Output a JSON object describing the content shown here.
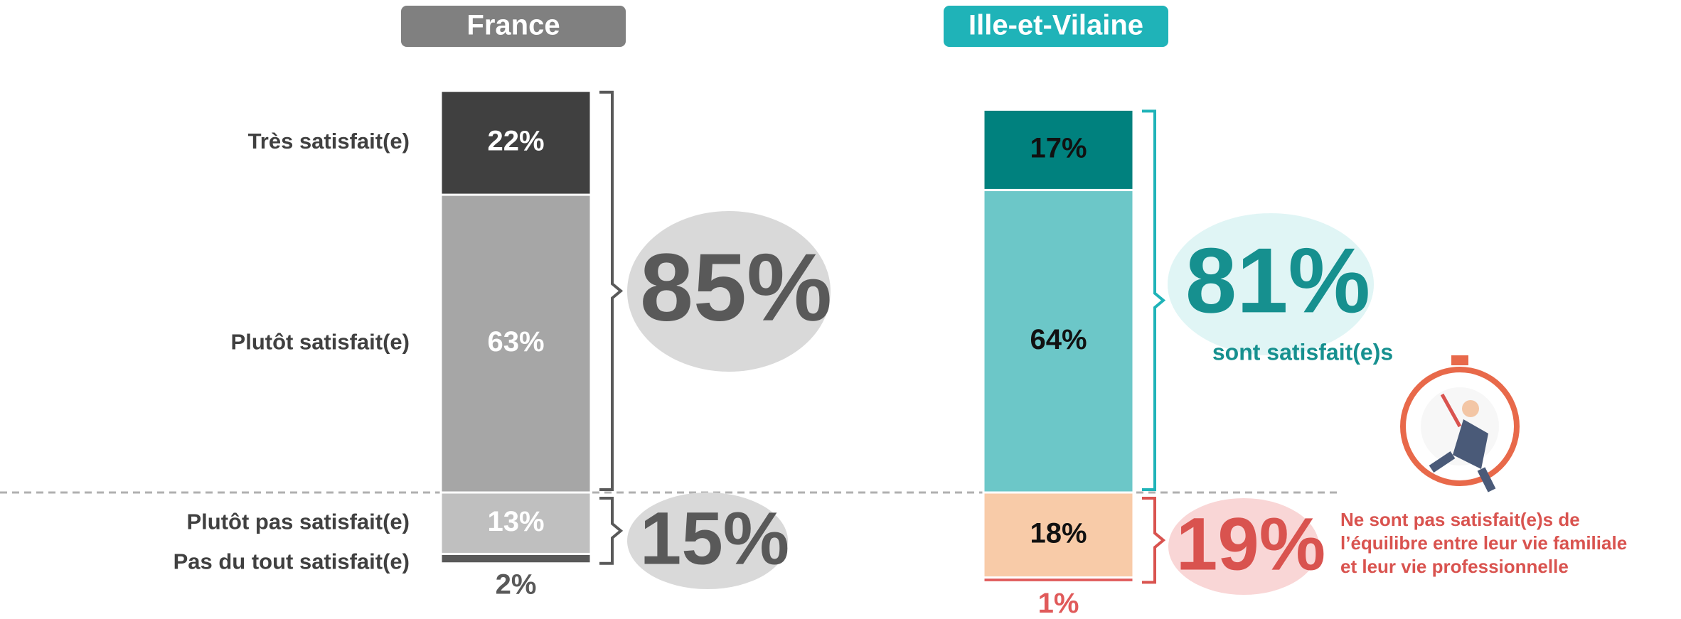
{
  "chart_data": {
    "type": "diverging_stacked_bar",
    "categories": [
      "France",
      "Ille-et-Vilaine"
    ],
    "category_colors": [
      "#808080",
      "#1fb3b8"
    ],
    "series": [
      {
        "name": "Très satisfait(e)",
        "colors": [
          "#404040",
          "#00817e"
        ],
        "values": [
          22,
          17
        ],
        "value_labels": [
          "22%",
          "17%"
        ]
      },
      {
        "name": "Plutôt satisfait(e)",
        "colors": [
          "#a6a6a6",
          "#6cc7c8"
        ],
        "values": [
          63,
          64
        ],
        "value_labels": [
          "63%",
          "64%"
        ]
      },
      {
        "name": "Plutôt pas satisfait(e)",
        "colors": [
          "#bfbfbf",
          "#f8cba8"
        ],
        "values": [
          13,
          18
        ],
        "value_labels": [
          "13%",
          "18%"
        ]
      },
      {
        "name": "Pas du tout satisfait(e)",
        "colors": [
          "#595959",
          "#e05a5a"
        ],
        "values": [
          2,
          1
        ],
        "value_labels": [
          "2%",
          "1%"
        ]
      }
    ],
    "totals": [
      {
        "values": [
          85,
          81
        ],
        "value_labels": [
          "85%",
          "81%"
        ]
      },
      {
        "values": [
          15,
          19
        ],
        "value_labels": [
          "15%",
          "19%"
        ]
      }
    ],
    "satisfied_note": "sont satisfait(e)s",
    "unsatisfied_note": [
      "Ne sont pas satisfait(e)s de",
      "l’équilibre entre leur vie familiale",
      "et leur vie professionnelle"
    ]
  }
}
